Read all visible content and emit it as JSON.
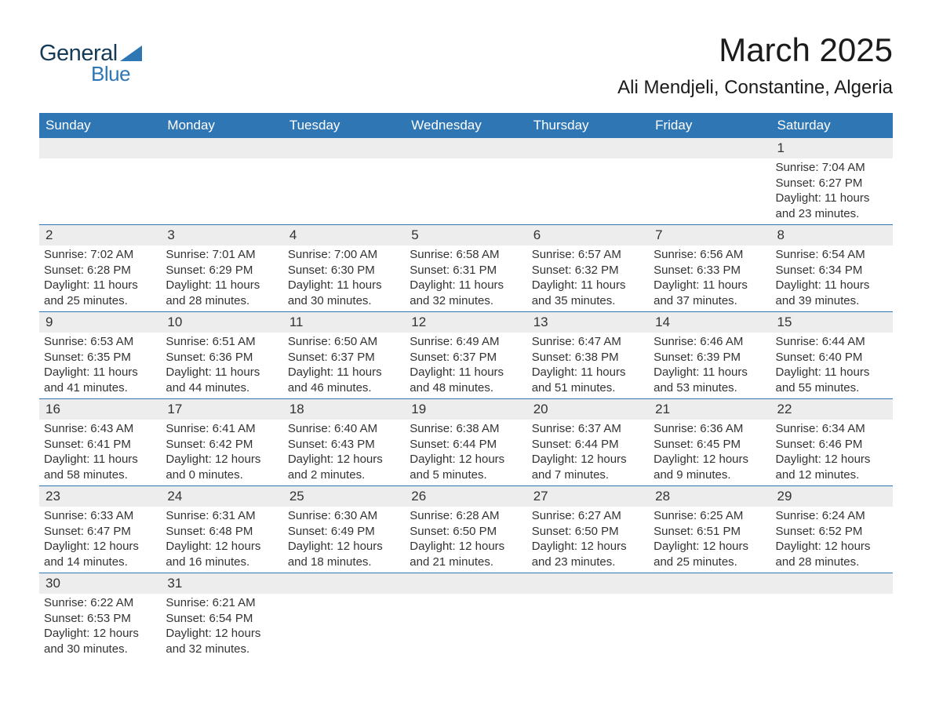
{
  "logo": {
    "general": "General",
    "blue": "Blue"
  },
  "header": {
    "title": "March 2025",
    "location": "Ali Mendjeli, Constantine, Algeria"
  },
  "calendar": {
    "columns": [
      "Sunday",
      "Monday",
      "Tuesday",
      "Wednesday",
      "Thursday",
      "Friday",
      "Saturday"
    ],
    "header_bg": "#2f76b5",
    "header_fg": "#ffffff",
    "daynum_bg": "#ededed",
    "row_border": "#2f76b5",
    "text_color": "#333333",
    "font_size_body": 15,
    "weeks": [
      [
        {
          "n": "",
          "lines": []
        },
        {
          "n": "",
          "lines": []
        },
        {
          "n": "",
          "lines": []
        },
        {
          "n": "",
          "lines": []
        },
        {
          "n": "",
          "lines": []
        },
        {
          "n": "",
          "lines": []
        },
        {
          "n": "1",
          "lines": [
            "Sunrise: 7:04 AM",
            "Sunset: 6:27 PM",
            "Daylight: 11 hours and 23 minutes."
          ]
        }
      ],
      [
        {
          "n": "2",
          "lines": [
            "Sunrise: 7:02 AM",
            "Sunset: 6:28 PM",
            "Daylight: 11 hours and 25 minutes."
          ]
        },
        {
          "n": "3",
          "lines": [
            "Sunrise: 7:01 AM",
            "Sunset: 6:29 PM",
            "Daylight: 11 hours and 28 minutes."
          ]
        },
        {
          "n": "4",
          "lines": [
            "Sunrise: 7:00 AM",
            "Sunset: 6:30 PM",
            "Daylight: 11 hours and 30 minutes."
          ]
        },
        {
          "n": "5",
          "lines": [
            "Sunrise: 6:58 AM",
            "Sunset: 6:31 PM",
            "Daylight: 11 hours and 32 minutes."
          ]
        },
        {
          "n": "6",
          "lines": [
            "Sunrise: 6:57 AM",
            "Sunset: 6:32 PM",
            "Daylight: 11 hours and 35 minutes."
          ]
        },
        {
          "n": "7",
          "lines": [
            "Sunrise: 6:56 AM",
            "Sunset: 6:33 PM",
            "Daylight: 11 hours and 37 minutes."
          ]
        },
        {
          "n": "8",
          "lines": [
            "Sunrise: 6:54 AM",
            "Sunset: 6:34 PM",
            "Daylight: 11 hours and 39 minutes."
          ]
        }
      ],
      [
        {
          "n": "9",
          "lines": [
            "Sunrise: 6:53 AM",
            "Sunset: 6:35 PM",
            "Daylight: 11 hours and 41 minutes."
          ]
        },
        {
          "n": "10",
          "lines": [
            "Sunrise: 6:51 AM",
            "Sunset: 6:36 PM",
            "Daylight: 11 hours and 44 minutes."
          ]
        },
        {
          "n": "11",
          "lines": [
            "Sunrise: 6:50 AM",
            "Sunset: 6:37 PM",
            "Daylight: 11 hours and 46 minutes."
          ]
        },
        {
          "n": "12",
          "lines": [
            "Sunrise: 6:49 AM",
            "Sunset: 6:37 PM",
            "Daylight: 11 hours and 48 minutes."
          ]
        },
        {
          "n": "13",
          "lines": [
            "Sunrise: 6:47 AM",
            "Sunset: 6:38 PM",
            "Daylight: 11 hours and 51 minutes."
          ]
        },
        {
          "n": "14",
          "lines": [
            "Sunrise: 6:46 AM",
            "Sunset: 6:39 PM",
            "Daylight: 11 hours and 53 minutes."
          ]
        },
        {
          "n": "15",
          "lines": [
            "Sunrise: 6:44 AM",
            "Sunset: 6:40 PM",
            "Daylight: 11 hours and 55 minutes."
          ]
        }
      ],
      [
        {
          "n": "16",
          "lines": [
            "Sunrise: 6:43 AM",
            "Sunset: 6:41 PM",
            "Daylight: 11 hours and 58 minutes."
          ]
        },
        {
          "n": "17",
          "lines": [
            "Sunrise: 6:41 AM",
            "Sunset: 6:42 PM",
            "Daylight: 12 hours and 0 minutes."
          ]
        },
        {
          "n": "18",
          "lines": [
            "Sunrise: 6:40 AM",
            "Sunset: 6:43 PM",
            "Daylight: 12 hours and 2 minutes."
          ]
        },
        {
          "n": "19",
          "lines": [
            "Sunrise: 6:38 AM",
            "Sunset: 6:44 PM",
            "Daylight: 12 hours and 5 minutes."
          ]
        },
        {
          "n": "20",
          "lines": [
            "Sunrise: 6:37 AM",
            "Sunset: 6:44 PM",
            "Daylight: 12 hours and 7 minutes."
          ]
        },
        {
          "n": "21",
          "lines": [
            "Sunrise: 6:36 AM",
            "Sunset: 6:45 PM",
            "Daylight: 12 hours and 9 minutes."
          ]
        },
        {
          "n": "22",
          "lines": [
            "Sunrise: 6:34 AM",
            "Sunset: 6:46 PM",
            "Daylight: 12 hours and 12 minutes."
          ]
        }
      ],
      [
        {
          "n": "23",
          "lines": [
            "Sunrise: 6:33 AM",
            "Sunset: 6:47 PM",
            "Daylight: 12 hours and 14 minutes."
          ]
        },
        {
          "n": "24",
          "lines": [
            "Sunrise: 6:31 AM",
            "Sunset: 6:48 PM",
            "Daylight: 12 hours and 16 minutes."
          ]
        },
        {
          "n": "25",
          "lines": [
            "Sunrise: 6:30 AM",
            "Sunset: 6:49 PM",
            "Daylight: 12 hours and 18 minutes."
          ]
        },
        {
          "n": "26",
          "lines": [
            "Sunrise: 6:28 AM",
            "Sunset: 6:50 PM",
            "Daylight: 12 hours and 21 minutes."
          ]
        },
        {
          "n": "27",
          "lines": [
            "Sunrise: 6:27 AM",
            "Sunset: 6:50 PM",
            "Daylight: 12 hours and 23 minutes."
          ]
        },
        {
          "n": "28",
          "lines": [
            "Sunrise: 6:25 AM",
            "Sunset: 6:51 PM",
            "Daylight: 12 hours and 25 minutes."
          ]
        },
        {
          "n": "29",
          "lines": [
            "Sunrise: 6:24 AM",
            "Sunset: 6:52 PM",
            "Daylight: 12 hours and 28 minutes."
          ]
        }
      ],
      [
        {
          "n": "30",
          "lines": [
            "Sunrise: 6:22 AM",
            "Sunset: 6:53 PM",
            "Daylight: 12 hours and 30 minutes."
          ]
        },
        {
          "n": "31",
          "lines": [
            "Sunrise: 6:21 AM",
            "Sunset: 6:54 PM",
            "Daylight: 12 hours and 32 minutes."
          ]
        },
        {
          "n": "",
          "lines": []
        },
        {
          "n": "",
          "lines": []
        },
        {
          "n": "",
          "lines": []
        },
        {
          "n": "",
          "lines": []
        },
        {
          "n": "",
          "lines": []
        }
      ]
    ]
  }
}
